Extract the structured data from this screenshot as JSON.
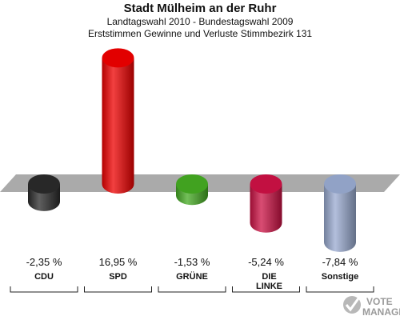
{
  "header": {
    "title": "Stadt Mülheim an der Ruhr",
    "subtitle1": "Landtagswahl 2010 - Bundestagswahl 2009",
    "subtitle2": "Erststimmen Gewinne und Verluste Stimmbezirk 131"
  },
  "logo": {
    "line1": "VOTE",
    "line2": "MANAGER"
  },
  "chart_data": {
    "type": "bar",
    "title": "Stadt Mülheim an der Ruhr",
    "subtitle": "Landtagswahl 2010 - Bundestagswahl 2009 / Erststimmen Gewinne und Verluste Stimmbezirk 131",
    "categories": [
      "CDU",
      "SPD",
      "GRÜNE",
      "DIE LINKE",
      "Sonstige"
    ],
    "category_lines": [
      [
        "CDU"
      ],
      [
        "SPD"
      ],
      [
        "GRÜNE"
      ],
      [
        "DIE",
        "LINKE"
      ],
      [
        "Sonstige"
      ]
    ],
    "values": [
      -2.35,
      16.95,
      -1.53,
      -5.24,
      -7.84
    ],
    "value_labels": [
      "-2,35 %",
      "16,95 %",
      "-1,53 %",
      "-5,24 %",
      "-7,84 %"
    ],
    "colors": [
      "#2a2a2a",
      "#ee0000",
      "#44aa22",
      "#cc1144",
      "#99aad0"
    ],
    "ylim": [
      -8.5,
      17.5
    ],
    "grid": false,
    "legend": "none"
  }
}
